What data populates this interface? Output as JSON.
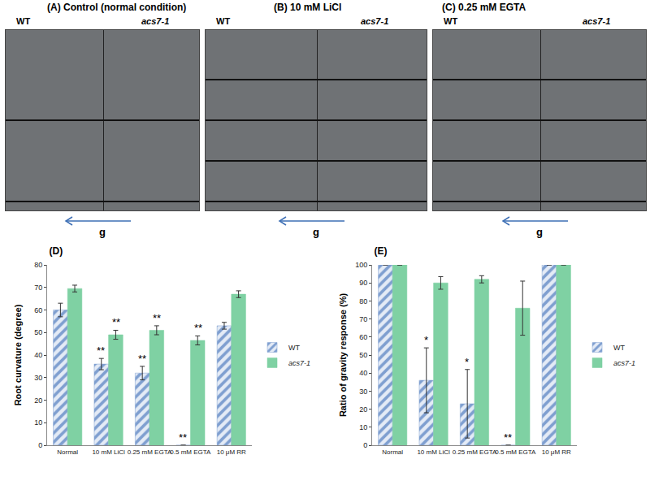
{
  "photo_panels": [
    {
      "title": "(A) Control (normal condition)",
      "labels": [
        "WT",
        "acs7-1"
      ],
      "gravity": "g"
    },
    {
      "title": "(B) 10 mM LiCl",
      "labels": [
        "WT",
        "acs7-1"
      ],
      "gravity": "g"
    },
    {
      "title": "(C) 0.25 mM EGTA",
      "labels": [
        "WT",
        "acs7-1"
      ],
      "gravity": "g"
    }
  ],
  "chart_data": [
    {
      "type": "bar",
      "title": "(D)",
      "categories": [
        "Normal",
        "10 mM LiCl",
        "0.25 mM EGTA",
        "0.5 mM EGTA",
        "10 μM RR"
      ],
      "y_label": "Root curvature (degree)",
      "series": [
        {
          "name": "WT",
          "color": "#7f9fd0",
          "marker": "hatched",
          "values": [
            60,
            36,
            32,
            0,
            53
          ],
          "errors": [
            3,
            2.5,
            3,
            0,
            1.5
          ]
        },
        {
          "name": "acs7-1",
          "color": "#7fd1a3",
          "marker": "solid",
          "values": [
            69.5,
            49,
            51,
            46.5,
            67
          ],
          "errors": [
            1.5,
            2,
            2,
            2,
            1.5
          ]
        }
      ],
      "annotations": [
        {
          "series": "WT",
          "category": "10 mM LiCl",
          "text": "**"
        },
        {
          "series": "acs7-1",
          "category": "10 mM LiCl",
          "text": "**"
        },
        {
          "series": "WT",
          "category": "0.25 mM EGTA",
          "text": "**"
        },
        {
          "series": "acs7-1",
          "category": "0.25 mM EGTA",
          "text": "**"
        },
        {
          "series": "WT",
          "category": "0.5 mM EGTA",
          "text": "**"
        },
        {
          "series": "acs7-1",
          "category": "0.5 mM EGTA",
          "text": "**"
        }
      ],
      "ylim": [
        0,
        80
      ],
      "yticks": [
        0,
        10,
        20,
        30,
        40,
        50,
        60,
        70,
        80
      ],
      "grid": false,
      "legend": "right"
    },
    {
      "type": "bar",
      "title": "(E)",
      "categories": [
        "Normal",
        "10 mM LiCl",
        "0.25 mM EGTA",
        "0.5 mM EGTA",
        "10 μM RR"
      ],
      "y_label": "Ratio of gravity response (%)",
      "series": [
        {
          "name": "WT",
          "color": "#7f9fd0",
          "marker": "hatched",
          "values": [
            100,
            36,
            23,
            0,
            100
          ],
          "errors": [
            0,
            18,
            19,
            0,
            0
          ]
        },
        {
          "name": "acs7-1",
          "color": "#7fd1a3",
          "marker": "solid",
          "values": [
            100,
            90,
            92,
            76,
            100
          ],
          "errors": [
            0,
            3.5,
            2,
            15,
            0
          ]
        }
      ],
      "annotations": [
        {
          "series": "WT",
          "category": "10 mM LiCl",
          "text": "*"
        },
        {
          "series": "WT",
          "category": "0.25 mM EGTA",
          "text": "*"
        },
        {
          "series": "WT",
          "category": "0.5 mM EGTA",
          "text": "**"
        }
      ],
      "ylim": [
        0,
        100
      ],
      "yticks": [
        0,
        10,
        20,
        30,
        40,
        50,
        60,
        70,
        80,
        90,
        100
      ],
      "grid": false,
      "legend": "right"
    }
  ]
}
